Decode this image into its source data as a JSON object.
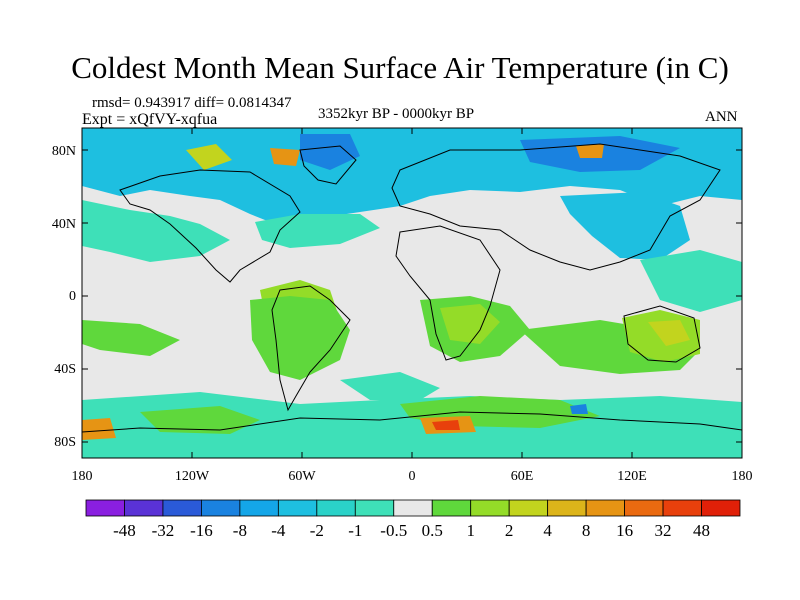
{
  "title": "Coldest Month Mean Surface Air Temperature (in C)",
  "stats_line": "rmsd= 0.943917 diff= 0.0814347",
  "expt_line": "Expt = xQfVY-xqfua",
  "period_line": "3352kyr BP - 0000kyr BP",
  "season": "ANN",
  "lat_labels": [
    "80N",
    "40N",
    "0",
    "40S",
    "80S"
  ],
  "lon_labels": [
    "180",
    "120W",
    "60W",
    "0",
    "60E",
    "120E",
    "180"
  ],
  "colorbar": {
    "labels": [
      "-48",
      "-32",
      "-16",
      "-8",
      "-4",
      "-2",
      "-1",
      "-0.5",
      "0.5",
      "1",
      "2",
      "4",
      "8",
      "16",
      "32",
      "48"
    ],
    "colors": [
      "#8a1fe0",
      "#5a32d6",
      "#2a5ad8",
      "#1a82e0",
      "#14a6e8",
      "#1ebfe0",
      "#2ad2c8",
      "#3ee0b8",
      "#e8e8e8",
      "#5fd83c",
      "#94dc28",
      "#c2d41e",
      "#dcb41a",
      "#e69414",
      "#ea6a10",
      "#e8400c",
      "#e02008"
    ]
  },
  "colors": {
    "background_field": "#e8e8e8",
    "cool_light": "#3ee0b8",
    "cool_mid": "#1ebfe0",
    "cool_strong": "#14a6e8",
    "cool_deep": "#1a82e0",
    "warm_light": "#5fd83c",
    "warm_mid": "#94dc28",
    "warm_strong": "#c2d41e",
    "warm_hot": "#e69414",
    "warm_max": "#e8400c",
    "coastline": "#000000"
  }
}
